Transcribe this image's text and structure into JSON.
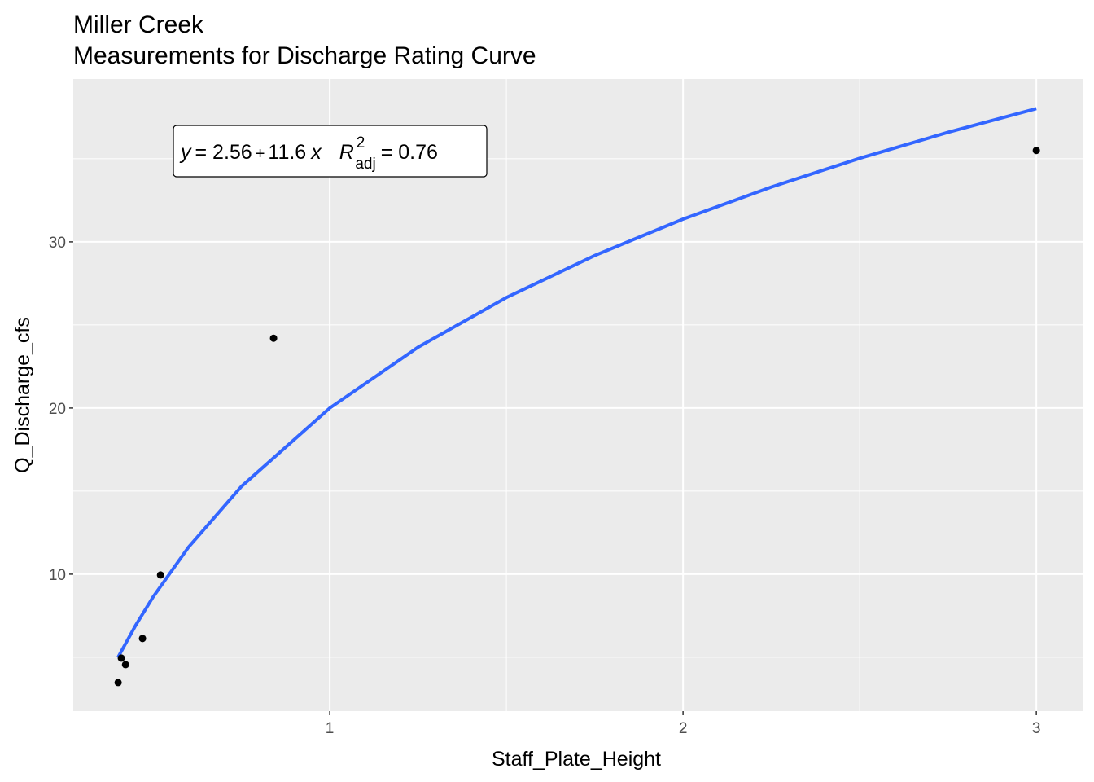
{
  "chart_data": {
    "type": "scatter",
    "title": "Miller Creek",
    "subtitle": "Measurements for Discharge Rating Curve",
    "x_label": "Staff_Plate_Height",
    "y_label": "Q_Discharge_cfs",
    "xlim": [
      0.274,
      3.131
    ],
    "ylim": [
      1.76,
      39.8
    ],
    "xticks": [
      1,
      2,
      3
    ],
    "yticks": [
      10,
      20,
      30
    ],
    "xminor": [
      1.5,
      2.5
    ],
    "yminor": [
      5,
      15,
      25,
      35
    ],
    "grid": true,
    "panel_color": "#ebebeb",
    "series": [
      {
        "name": "measurements",
        "color": "#000000",
        "x": [
          0.401,
          0.41,
          0.422,
          0.47,
          0.521,
          0.841,
          3.0
        ],
        "values": [
          3.48,
          4.95,
          4.56,
          6.13,
          9.95,
          24.2,
          35.5
        ]
      },
      {
        "name": "fit",
        "color": "#3366ff",
        "x": [
          0.401,
          0.45,
          0.5,
          0.6,
          0.75,
          1,
          1.25,
          1.5,
          1.75,
          2,
          2.25,
          2.5,
          2.75,
          3
        ],
        "values": [
          5.01,
          6.9,
          8.63,
          11.62,
          15.28,
          20,
          23.66,
          26.65,
          29.18,
          31.37,
          33.3,
          35.03,
          36.59,
          38.02
        ]
      }
    ],
    "annotation": {
      "y": "y",
      "eq": "= 2.56",
      "plus": "+",
      "slope": "11.6",
      "x": "x",
      "r": "R",
      "sup": "2",
      "sub": "adj",
      "r2": "= 0.76"
    }
  }
}
